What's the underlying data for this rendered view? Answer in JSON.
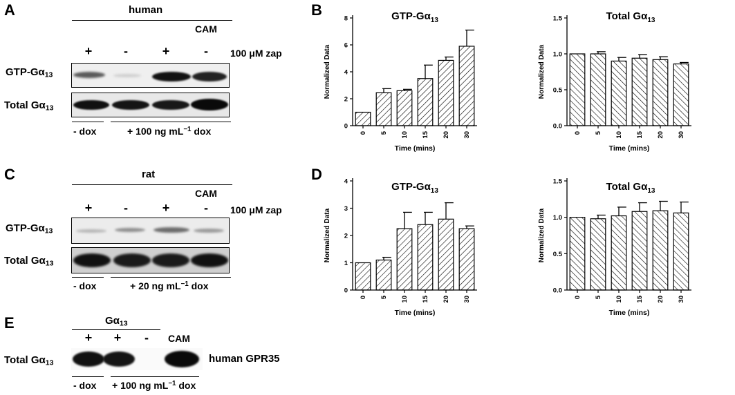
{
  "panels": {
    "A": {
      "letter": "A",
      "species": "human",
      "cam_label": "CAM",
      "signs": [
        "+",
        "-",
        "+",
        "-"
      ],
      "zap_label": "100 μM zap",
      "row_gtp_main": "GTP-Gα",
      "row_gtp_sub": "13",
      "row_total_main": "Total Gα",
      "row_total_sub": "13",
      "nodox_label": "- dox",
      "dox_pre": "+ 100 ng mL",
      "dox_sup": "−1",
      "dox_post": " dox"
    },
    "C": {
      "letter": "C",
      "species": "rat",
      "cam_label": "CAM",
      "signs": [
        "+",
        "-",
        "+",
        "-"
      ],
      "zap_label": "100 μM zap",
      "row_gtp_main": "GTP-Gα",
      "row_gtp_sub": "13",
      "row_total_main": "Total Gα",
      "row_total_sub": "13",
      "nodox_label": "- dox",
      "dox_pre": "+ 20 ng mL",
      "dox_sup": "−1",
      "dox_post": " dox"
    },
    "E": {
      "letter": "E",
      "header_main": "Gα",
      "header_sub": "13",
      "signs": [
        "+",
        "+",
        "-"
      ],
      "cam_label": "CAM",
      "row_total_main": "Total Gα",
      "row_total_sub": "13",
      "receptor_label": "human GPR35",
      "nodox_label": "- dox",
      "dox_pre": "+ 100 ng mL",
      "dox_sup": "−1",
      "dox_post": " dox"
    },
    "B_letter": "B",
    "D_letter": "D"
  },
  "chart_data": [
    {
      "panel": "B",
      "type": "bar",
      "title_main": "GTP-Gα",
      "title_sub": "13",
      "xlabel": "Time (mins)",
      "ylabel": "Normalized Data",
      "categories": [
        "0",
        "5",
        "10",
        "15",
        "20",
        "30"
      ],
      "values": [
        1.0,
        2.45,
        2.6,
        3.5,
        4.85,
        5.9
      ],
      "errors": [
        0,
        0.3,
        0.1,
        1.0,
        0.25,
        1.2
      ],
      "ylim": [
        0,
        8
      ],
      "yticks": [
        "0",
        "2",
        "4",
        "6",
        "8"
      ],
      "ytick_values": [
        0,
        2,
        4,
        6,
        8
      ],
      "hatch": "forward"
    },
    {
      "panel": "B",
      "type": "bar",
      "title_main": "Total Gα",
      "title_sub": "13",
      "xlabel": "Time (mins)",
      "ylabel": "Normalized Data",
      "categories": [
        "0",
        "5",
        "10",
        "15",
        "20",
        "30"
      ],
      "values": [
        1.0,
        1.0,
        0.9,
        0.94,
        0.92,
        0.86
      ],
      "errors": [
        0,
        0.03,
        0.05,
        0.05,
        0.04,
        0.02
      ],
      "ylim": [
        0,
        1.5
      ],
      "yticks": [
        "0.0",
        "0.5",
        "1.0",
        "1.5"
      ],
      "ytick_values": [
        0,
        0.5,
        1.0,
        1.5
      ],
      "hatch": "backward"
    },
    {
      "panel": "D",
      "type": "bar",
      "title_main": "GTP-Gα",
      "title_sub": "13",
      "xlabel": "Time (mins)",
      "ylabel": "Normalized Data",
      "categories": [
        "0",
        "5",
        "10",
        "15",
        "20",
        "30"
      ],
      "values": [
        1.0,
        1.1,
        2.25,
        2.4,
        2.6,
        2.25
      ],
      "errors": [
        0,
        0.1,
        0.6,
        0.45,
        0.6,
        0.1
      ],
      "ylim": [
        0,
        4
      ],
      "yticks": [
        "0",
        "1",
        "2",
        "3",
        "4"
      ],
      "ytick_values": [
        0,
        1,
        2,
        3,
        4
      ],
      "hatch": "forward"
    },
    {
      "panel": "D",
      "type": "bar",
      "title_main": "Total Gα",
      "title_sub": "13",
      "xlabel": "Time (mins)",
      "ylabel": "Normalized Data",
      "categories": [
        "0",
        "5",
        "10",
        "15",
        "20",
        "30"
      ],
      "values": [
        1.0,
        0.98,
        1.02,
        1.08,
        1.09,
        1.06
      ],
      "errors": [
        0,
        0.05,
        0.12,
        0.12,
        0.13,
        0.15
      ],
      "ylim": [
        0,
        1.5
      ],
      "yticks": [
        "0.0",
        "0.5",
        "1.0",
        "1.5"
      ],
      "ytick_values": [
        0,
        0.5,
        1.0,
        1.5
      ],
      "hatch": "backward"
    }
  ]
}
